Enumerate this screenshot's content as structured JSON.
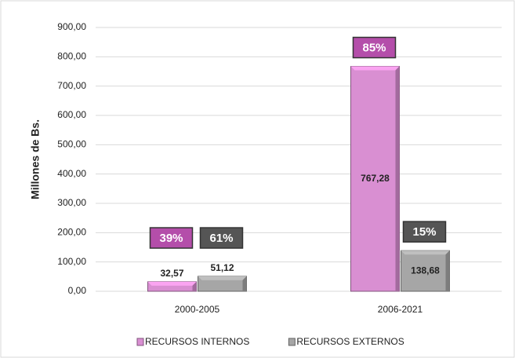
{
  "chart_data": {
    "type": "bar",
    "y_label": "Millones de Bs.",
    "categories": [
      "2000-2005",
      "2006-2021"
    ],
    "series": [
      {
        "name": "RECURSOS INTERNOS",
        "color": "#d98fd2",
        "box_color": "#b44eaa",
        "values": [
          32.57,
          767.28
        ],
        "value_labels": [
          "32,57",
          "767,28"
        ],
        "share_labels": [
          "39%",
          "85%"
        ]
      },
      {
        "name": "RECURSOS EXTERNOS",
        "color": "#a6a6a6",
        "box_color": "#555555",
        "values": [
          51.12,
          138.68
        ],
        "value_labels": [
          "51,12",
          "138,68"
        ],
        "share_labels": [
          "61%",
          "15%"
        ]
      }
    ],
    "ylim": [
      0,
      900
    ],
    "yticks": [
      {
        "value": 0,
        "label": "0,00"
      },
      {
        "value": 100,
        "label": "100,00"
      },
      {
        "value": 200,
        "label": "200,00"
      },
      {
        "value": 300,
        "label": "300,00"
      },
      {
        "value": 400,
        "label": "400,00"
      },
      {
        "value": 500,
        "label": "500,00"
      },
      {
        "value": 600,
        "label": "600,00"
      },
      {
        "value": 700,
        "label": "700,00"
      },
      {
        "value": 800,
        "label": "800,00"
      },
      {
        "value": 900,
        "label": "900,00"
      }
    ],
    "grid": true
  }
}
